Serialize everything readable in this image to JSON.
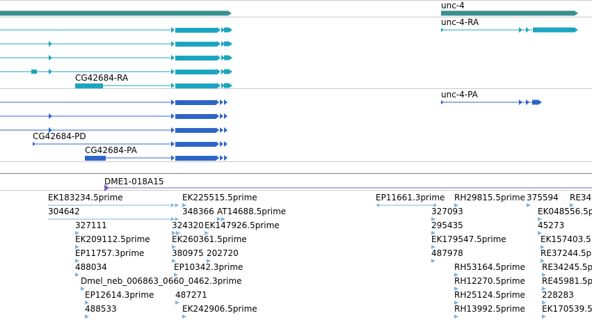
{
  "colors": {
    "gene": "#3A8F8F",
    "transcript_teal": "#1CA5C0",
    "transcript_blue": "#2E66C8",
    "clone": "#7A5CC4",
    "est": "#7BB4DD",
    "divider": "#C8C8C8",
    "divider_dark": "#7F7F7F"
  },
  "genes": [
    {
      "name": "unc-4",
      "label": ""
    },
    {
      "name": "unc-4",
      "label": "unc-4"
    }
  ],
  "transcripts": [
    {
      "label": "unc-4-RA"
    },
    {
      "label": "CG42684-RA"
    },
    {
      "label": "unc-4-PA"
    },
    {
      "label": "CG42684-PD"
    },
    {
      "label": "CG42684-PA"
    }
  ],
  "clones": [
    {
      "label": "DME1-018A15"
    }
  ],
  "ests": [
    "EK183234.5prime",
    "EK225515.5prime",
    "EP11661.3prime",
    "RH29815.5prime",
    "375594",
    "RE34",
    "304642",
    "348366",
    "AT14688.5prime",
    "327093",
    "EK048556.5p",
    "327111",
    "324320",
    "EK147926.5prime",
    "295435",
    "45273",
    "EK209112.5prime",
    "EK260361.5prime",
    "EK179547.5prime",
    "EK157403.5",
    "EP11757.3prime",
    "380975",
    "202720",
    "487978",
    "RE37244.5p",
    "488034",
    "EP10342.3prime",
    "RH53164.5prime",
    "RE34245.5p",
    "Dmel_neb_006863_0660_0462.3prime",
    "RH12270.5prime",
    "RE45981.5p",
    "EP12614.3prime",
    "487271",
    "RH25124.5prime",
    "228283",
    "488533",
    "EK242906.5prime",
    "RH13992.5prime",
    "EK170539.5"
  ]
}
